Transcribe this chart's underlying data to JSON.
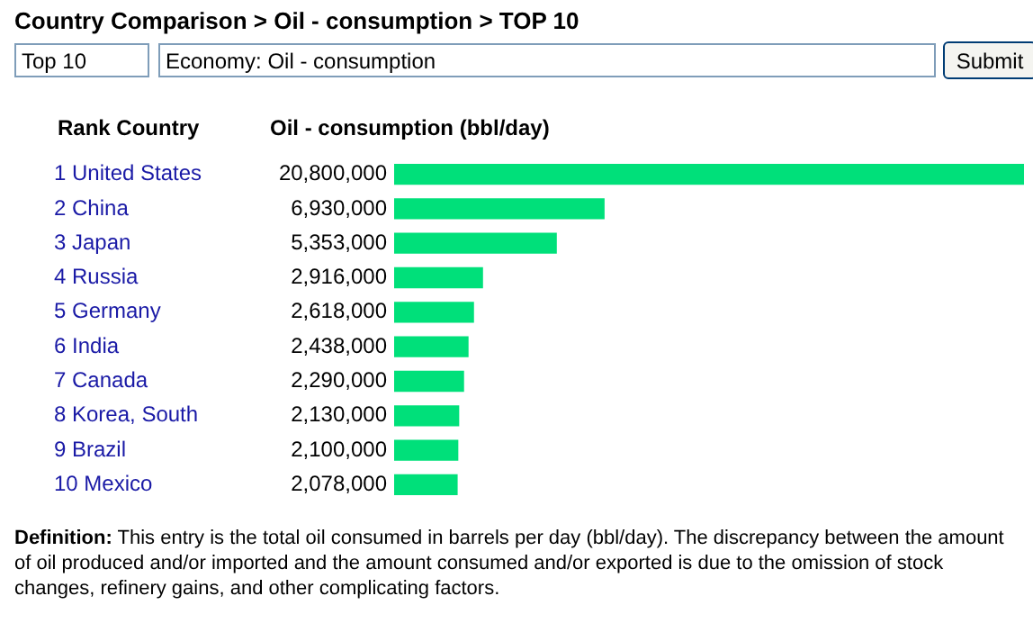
{
  "chart_data": {
    "type": "bar",
    "orientation": "horizontal",
    "title": "Country Comparison > Oil - consumption > TOP 10",
    "ylabel": "Rank Country",
    "xlabel": "Oil - consumption (bbl/day)",
    "categories": [
      "1 United States",
      "2 China",
      "3 Japan",
      "4 Russia",
      "5 Germany",
      "6 India",
      "7 Canada",
      "8 Korea, South",
      "9 Brazil",
      "10 Mexico"
    ],
    "values": [
      20800000,
      6930000,
      5353000,
      2916000,
      2618000,
      2438000,
      2290000,
      2130000,
      2100000,
      2078000
    ],
    "value_labels": [
      "20,800,000",
      "6,930,000",
      "5,353,000",
      "2,916,000",
      "2,618,000",
      "2,438,000",
      "2,290,000",
      "2,130,000",
      "2,100,000",
      "2,078,000"
    ],
    "color": "#00e07a",
    "xlim": [
      0,
      20800000
    ],
    "tick_labels": false,
    "legend": false,
    "annotations": [
      "Top 10",
      "Economy: Oil - consumption",
      "Submit",
      "Definition: This entry is the total oil consumed in barrels per day (bbl/day). The discrepancy between the amount of oil produced and/or imported and the amount consumed and/or exported is due to the omission of stock changes, refinery gains, and other complicating factors."
    ]
  }
}
